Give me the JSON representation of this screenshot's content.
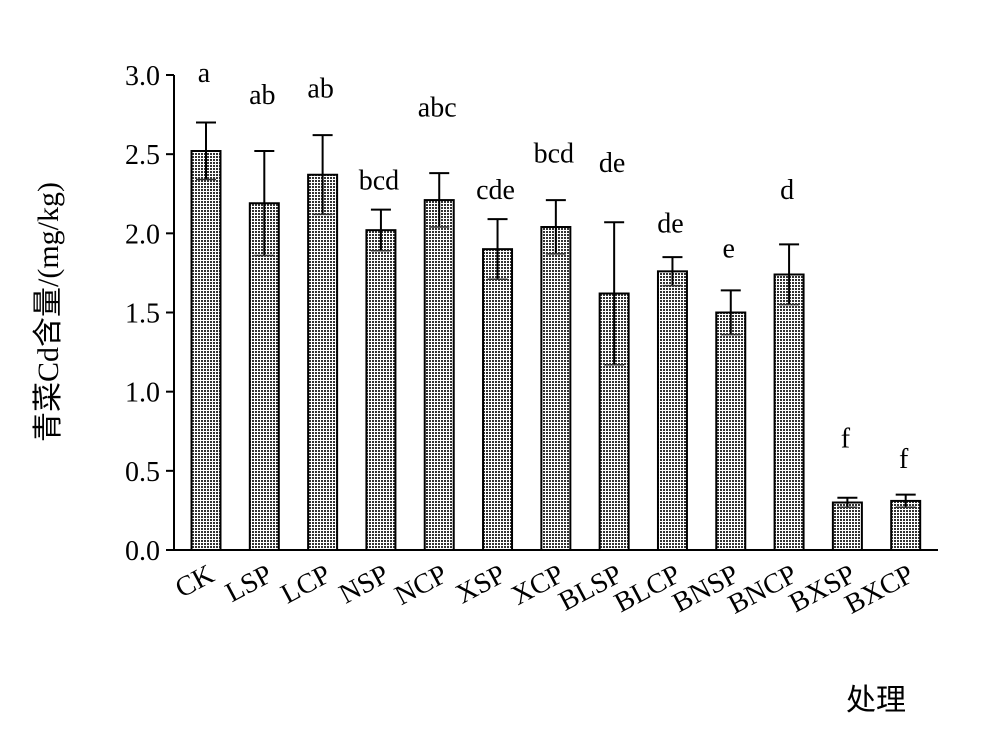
{
  "chart_data": {
    "type": "bar",
    "title": "",
    "xlabel": "处理",
    "ylabel": "青菜Cd含量/(mg/kg)",
    "ylim": [
      0,
      3.0
    ],
    "yticks": [
      "0.0",
      "0.5",
      "1.0",
      "1.5",
      "2.0",
      "2.5",
      "3.0"
    ],
    "grid": false,
    "legend": "none",
    "bar_fill": "#8c8c8c",
    "categories": [
      "CK",
      "LSP",
      "LCP",
      "NSP",
      "NCP",
      "XSP",
      "XCP",
      "BLSP",
      "BLCP",
      "BNSP",
      "BNCP",
      "BXSP",
      "BXCP"
    ],
    "values": [
      2.52,
      2.19,
      2.37,
      2.02,
      2.21,
      1.9,
      2.04,
      1.62,
      1.76,
      1.5,
      1.74,
      0.3,
      0.31
    ],
    "errors": [
      0.18,
      0.33,
      0.25,
      0.13,
      0.17,
      0.19,
      0.17,
      0.45,
      0.09,
      0.14,
      0.19,
      0.03,
      0.04
    ],
    "labels": [
      "a",
      "ab",
      "ab",
      "bcd",
      "abc",
      "cde",
      "bcd",
      "de",
      "de",
      "e",
      "d",
      "f",
      "f"
    ],
    "label_values": [
      3.02,
      2.88,
      2.92,
      2.34,
      2.8,
      2.28,
      2.51,
      2.45,
      2.07,
      1.91,
      2.28,
      0.71,
      0.58
    ]
  }
}
